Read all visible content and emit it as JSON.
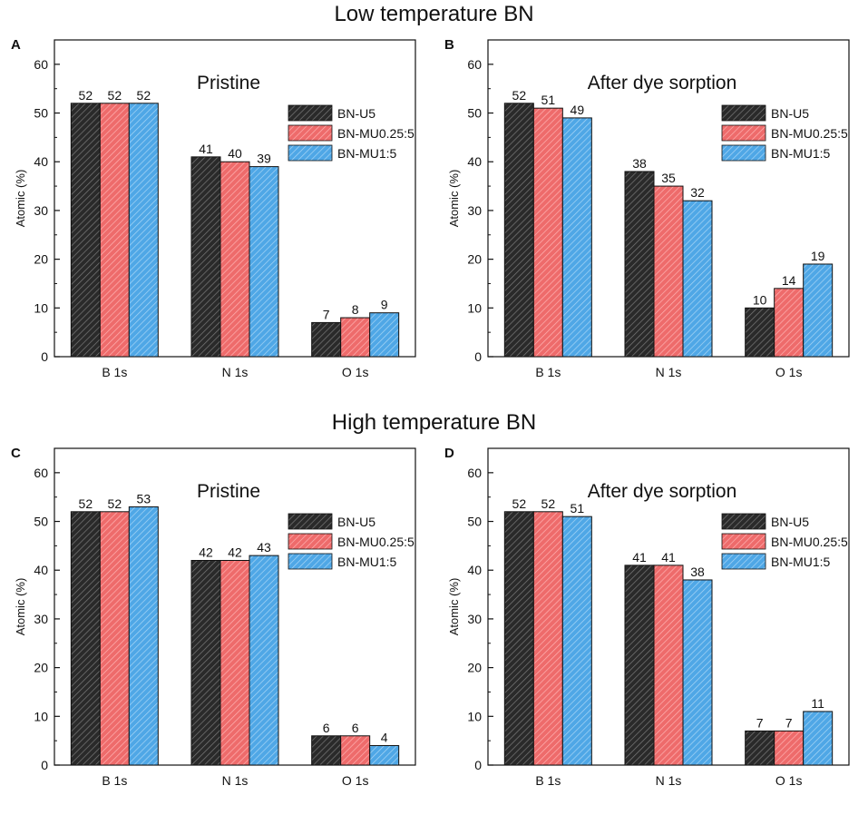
{
  "sections": {
    "low_title": "Low temperature BN",
    "high_title": "High temperature BN"
  },
  "colors": {
    "series": [
      "#2a2a2a",
      "#ee6b6b",
      "#4fa7e6"
    ],
    "hatch": [
      "#7a7a7a",
      "#ffb3b3",
      "#a9d6f6"
    ]
  },
  "chart_data": [
    {
      "panel": "A",
      "type": "bar",
      "title": "Pristine",
      "categories": [
        "B 1s",
        "N 1s",
        "O 1s"
      ],
      "series": [
        {
          "name": "BN-U5",
          "values": [
            52,
            41,
            7
          ]
        },
        {
          "name": "BN-MU0.25:5",
          "values": [
            52,
            40,
            8
          ]
        },
        {
          "name": "BN-MU1:5",
          "values": [
            52,
            39,
            9
          ]
        }
      ],
      "xlabel": "",
      "ylabel": "Atomic (%)",
      "ylim": [
        0,
        65
      ],
      "yticks": [
        0,
        10,
        20,
        30,
        40,
        50,
        60
      ],
      "legend": "top-right",
      "grid": false
    },
    {
      "panel": "B",
      "type": "bar",
      "title": "After dye sorption",
      "categories": [
        "B 1s",
        "N 1s",
        "O 1s"
      ],
      "series": [
        {
          "name": "BN-U5",
          "values": [
            52,
            38,
            10
          ]
        },
        {
          "name": "BN-MU0.25:5",
          "values": [
            51,
            35,
            14
          ]
        },
        {
          "name": "BN-MU1:5",
          "values": [
            49,
            32,
            19
          ]
        }
      ],
      "xlabel": "",
      "ylabel": "Atomic (%)",
      "ylim": [
        0,
        65
      ],
      "yticks": [
        0,
        10,
        20,
        30,
        40,
        50,
        60
      ],
      "legend": "top-right",
      "grid": false
    },
    {
      "panel": "C",
      "type": "bar",
      "title": "Pristine",
      "categories": [
        "B 1s",
        "N 1s",
        "O 1s"
      ],
      "series": [
        {
          "name": "BN-U5",
          "values": [
            52,
            42,
            6
          ]
        },
        {
          "name": "BN-MU0.25:5",
          "values": [
            52,
            42,
            6
          ]
        },
        {
          "name": "BN-MU1:5",
          "values": [
            53,
            43,
            4
          ]
        }
      ],
      "xlabel": "",
      "ylabel": "Atomic (%)",
      "ylim": [
        0,
        65
      ],
      "yticks": [
        0,
        10,
        20,
        30,
        40,
        50,
        60
      ],
      "legend": "top-right",
      "grid": false
    },
    {
      "panel": "D",
      "type": "bar",
      "title": "After dye sorption",
      "categories": [
        "B 1s",
        "N 1s",
        "O 1s"
      ],
      "series": [
        {
          "name": "BN-U5",
          "values": [
            52,
            41,
            7
          ]
        },
        {
          "name": "BN-MU0.25:5",
          "values": [
            52,
            41,
            7
          ]
        },
        {
          "name": "BN-MU1:5",
          "values": [
            51,
            38,
            11
          ]
        }
      ],
      "xlabel": "",
      "ylabel": "Atomic (%)",
      "ylim": [
        0,
        65
      ],
      "yticks": [
        0,
        10,
        20,
        30,
        40,
        50,
        60
      ],
      "legend": "top-right",
      "grid": false
    }
  ]
}
